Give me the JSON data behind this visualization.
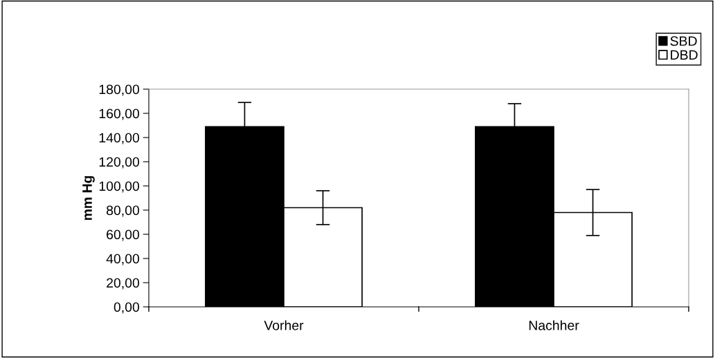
{
  "chart_data": {
    "type": "bar",
    "ylabel": "mm Hg",
    "categories": [
      "Vorher",
      "Nachher"
    ],
    "series": [
      {
        "name": "SBD",
        "color": "#000000",
        "values": [
          149,
          149
        ],
        "errors": [
          20,
          19
        ]
      },
      {
        "name": "DBD",
        "color": "#ffffff",
        "values": [
          82,
          78
        ],
        "errors": [
          14,
          19
        ]
      }
    ],
    "ylim": [
      0,
      180
    ],
    "yticks": [
      {
        "value": 0,
        "label": "0,00"
      },
      {
        "value": 20,
        "label": "20,00"
      },
      {
        "value": 40,
        "label": "40,00"
      },
      {
        "value": 60,
        "label": "60,00"
      },
      {
        "value": 80,
        "label": "80,00"
      },
      {
        "value": 100,
        "label": "100,00"
      },
      {
        "value": 120,
        "label": "120,00"
      },
      {
        "value": 140,
        "label": "140,00"
      },
      {
        "value": 160,
        "label": "160,00"
      },
      {
        "value": 180,
        "label": "180,00"
      }
    ],
    "grid": false,
    "legend": "top right"
  }
}
